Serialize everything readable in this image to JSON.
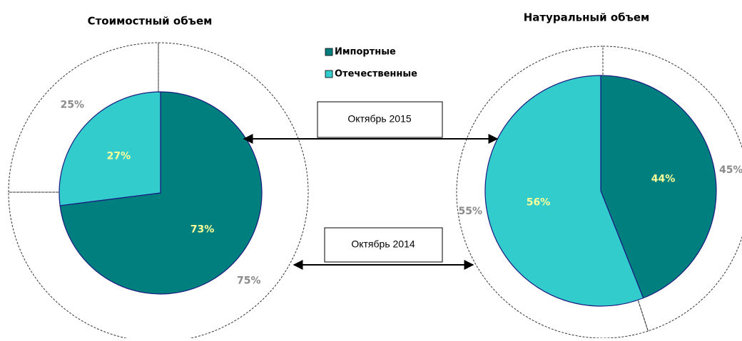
{
  "categories": [
    "Импортные",
    "Отечественные"
  ],
  "colors": [
    "#007f7f",
    "#33cccc"
  ],
  "annotations": [
    "Октябрь 2015",
    "Октябрь 2014"
  ],
  "chart_data": [
    {
      "type": "pie",
      "title": "Стоимостный объем",
      "inner": {
        "values": [
          73,
          27
        ],
        "value_labels": [
          "73%",
          "27%"
        ]
      },
      "outer": {
        "values": [
          75,
          25
        ],
        "value_labels": [
          "75%",
          "25%"
        ]
      }
    },
    {
      "type": "pie",
      "title": "Натуральный объем",
      "inner": {
        "values": [
          44,
          56
        ],
        "value_labels": [
          "44%",
          "56%"
        ]
      },
      "outer": {
        "values": [
          45,
          55
        ],
        "value_labels": [
          "45%",
          "55%"
        ]
      }
    }
  ]
}
